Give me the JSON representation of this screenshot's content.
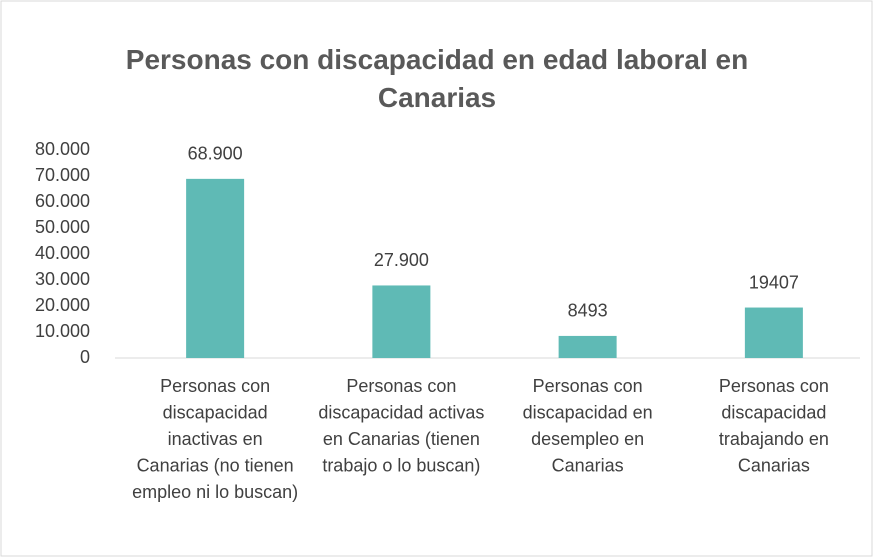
{
  "chart_data": {
    "type": "bar",
    "title": "Personas con discapacidad en edad laboral en Canarias",
    "categories": [
      "Personas con discapacidad inactivas en Canarias (no tienen empleo ni lo buscan)",
      "Personas con discapacidad activas en Canarias (tienen trabajo o lo buscan)",
      "Personas con discapacidad en desempleo en Canarias",
      "Personas con discapacidad trabajando en Canarias"
    ],
    "values": [
      68900,
      27900,
      8493,
      19407
    ],
    "value_labels": [
      "68.900",
      "27.900",
      "8493",
      "19407"
    ],
    "color": "#5fbab5",
    "ylim": [
      0,
      80000
    ],
    "yticks": [
      0,
      {
        "value": 10000,
        "label": "10.000"
      },
      {
        "value": 20000,
        "label": "20.000"
      },
      {
        "value": 30000,
        "label": "30.000"
      },
      {
        "value": 40000,
        "label": "40.000"
      },
      {
        "value": 50000,
        "label": "50.000"
      },
      {
        "value": 60000,
        "label": "60.000"
      },
      {
        "value": 70000,
        "label": "70.000"
      },
      {
        "value": 80000,
        "label": "80.000"
      }
    ],
    "grid": false
  }
}
